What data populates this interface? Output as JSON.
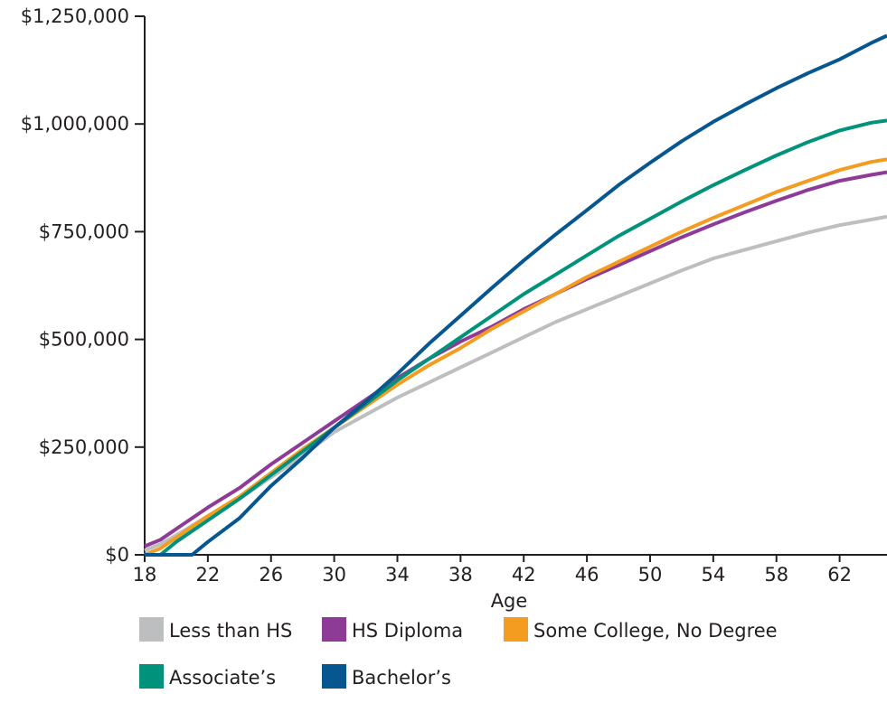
{
  "chart_data": {
    "type": "line",
    "title": "",
    "xlabel": "Age",
    "ylabel": "",
    "xlim": [
      18,
      65
    ],
    "ylim": [
      0,
      1250000
    ],
    "x_ticks": [
      18,
      22,
      26,
      30,
      34,
      38,
      42,
      46,
      50,
      54,
      58,
      62
    ],
    "x_tick_labels": [
      "18",
      "22",
      "26",
      "30",
      "34",
      "38",
      "42",
      "46",
      "50",
      "54",
      "58",
      "62"
    ],
    "y_ticks": [
      0,
      250000,
      500000,
      750000,
      1000000,
      1250000
    ],
    "y_tick_labels": [
      "$0",
      "$250,000",
      "$500,000",
      "$750,000",
      "$1,000,000",
      "$1,250,000"
    ],
    "grid": false,
    "legend_placement": "bottom",
    "series": [
      {
        "name": "Less than HS",
        "color": "#bcbec0",
        "x": [
          18,
          19,
          20,
          22,
          24,
          26,
          28,
          30,
          32,
          34,
          36,
          38,
          40,
          42,
          44,
          46,
          48,
          50,
          52,
          54,
          56,
          58,
          60,
          62,
          64,
          65
        ],
        "values": [
          10000,
          25000,
          45000,
          90000,
          130000,
          180000,
          230000,
          285000,
          325000,
          365000,
          400000,
          435000,
          470000,
          505000,
          540000,
          570000,
          600000,
          630000,
          660000,
          688000,
          708000,
          728000,
          748000,
          765000,
          778000,
          785000
        ]
      },
      {
        "name": "HS Diploma",
        "color": "#8e3b97",
        "x": [
          18,
          19,
          20,
          22,
          24,
          26,
          28,
          30,
          32,
          34,
          36,
          38,
          40,
          42,
          44,
          46,
          48,
          50,
          52,
          54,
          56,
          58,
          60,
          62,
          64,
          65
        ],
        "values": [
          20000,
          35000,
          60000,
          110000,
          155000,
          210000,
          260000,
          310000,
          360000,
          410000,
          455000,
          495000,
          530000,
          570000,
          605000,
          640000,
          672000,
          705000,
          737000,
          767000,
          795000,
          822000,
          847000,
          868000,
          882000,
          888000
        ]
      },
      {
        "name": "Some College, No Degree",
        "color": "#f39c1f",
        "x": [
          18,
          19,
          20,
          22,
          24,
          26,
          28,
          30,
          32,
          34,
          36,
          38,
          40,
          42,
          44,
          46,
          48,
          50,
          52,
          54,
          56,
          58,
          60,
          62,
          64,
          65
        ],
        "values": [
          0,
          15000,
          40000,
          90000,
          135000,
          190000,
          245000,
          295000,
          345000,
          395000,
          440000,
          480000,
          525000,
          565000,
          605000,
          645000,
          680000,
          715000,
          750000,
          782000,
          812000,
          842000,
          868000,
          893000,
          912000,
          918000
        ]
      },
      {
        "name": "Associate’s",
        "color": "#00927a",
        "x": [
          18,
          19,
          20,
          22,
          24,
          26,
          28,
          30,
          32,
          34,
          36,
          38,
          40,
          42,
          44,
          46,
          48,
          50,
          52,
          54,
          56,
          58,
          60,
          62,
          64,
          65
        ],
        "values": [
          0,
          0,
          30000,
          80000,
          130000,
          185000,
          240000,
          295000,
          350000,
          405000,
          455000,
          505000,
          555000,
          605000,
          650000,
          695000,
          740000,
          780000,
          820000,
          858000,
          893000,
          927000,
          958000,
          985000,
          1003000,
          1008000
        ]
      },
      {
        "name": "Bachelor’s",
        "color": "#06578f",
        "x": [
          18,
          19,
          20,
          21,
          22,
          24,
          26,
          28,
          30,
          32,
          34,
          36,
          38,
          40,
          42,
          44,
          46,
          48,
          50,
          52,
          54,
          56,
          58,
          60,
          62,
          64,
          65
        ],
        "values": [
          0,
          0,
          0,
          0,
          30000,
          85000,
          160000,
          225000,
          295000,
          355000,
          420000,
          490000,
          555000,
          620000,
          683000,
          743000,
          800000,
          858000,
          910000,
          960000,
          1005000,
          1045000,
          1083000,
          1118000,
          1150000,
          1188000,
          1205000
        ]
      }
    ]
  }
}
